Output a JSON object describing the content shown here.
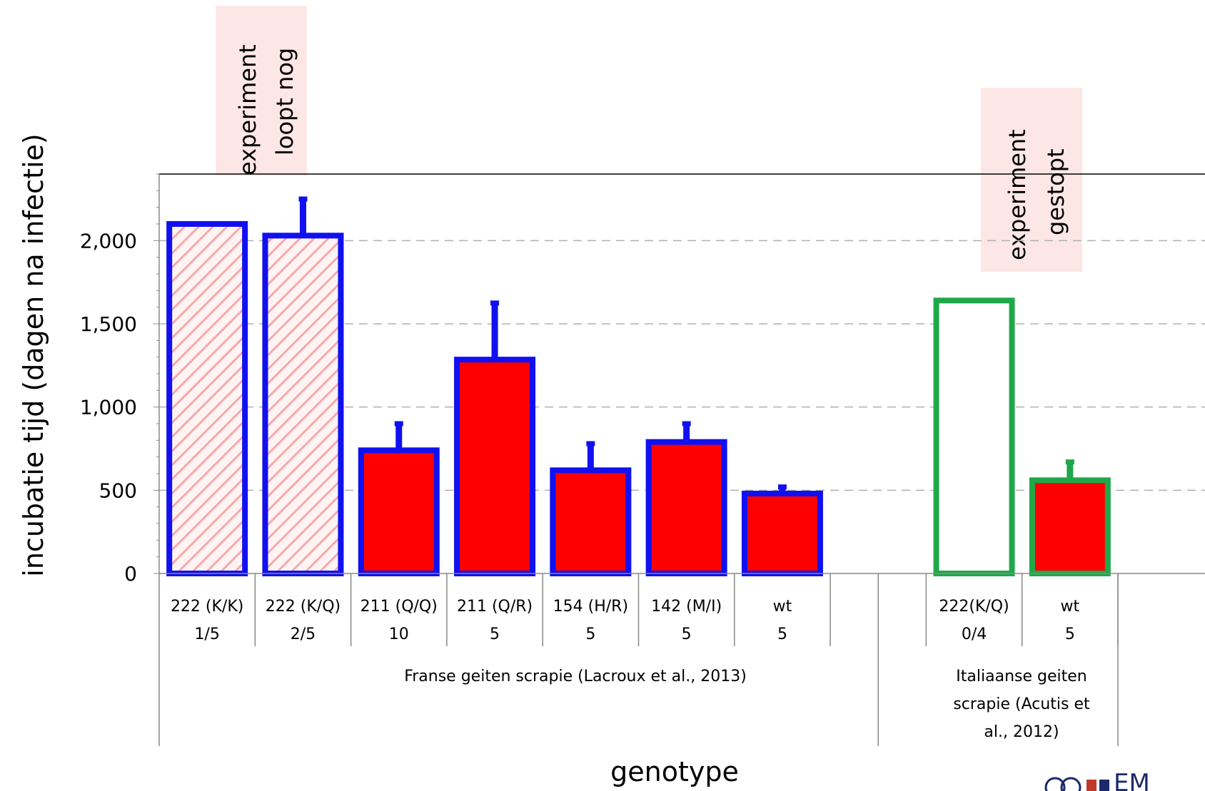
{
  "chart_data": {
    "type": "bar",
    "ylabel": "incubatie tijd (dagen na infectie)",
    "xlabel": "genotype",
    "ylim": [
      0,
      2400
    ],
    "yticks": [
      0,
      500,
      1000,
      1500,
      2000
    ],
    "ytick_labels": [
      "0",
      "500",
      "1,000",
      "1,500",
      "2,000"
    ],
    "grid": "horizontal dashed",
    "categories": [
      {
        "label": "222 (K/K)",
        "sub": "1/5",
        "value": 2100,
        "error": 0,
        "style": "hatched",
        "outline": "#1010f0"
      },
      {
        "label": "222 (K/Q)",
        "sub": "2/5",
        "value": 2030,
        "error": 220,
        "style": "hatched",
        "outline": "#1010f0"
      },
      {
        "label": "211 (Q/Q)",
        "sub": "10",
        "value": 740,
        "error": 160,
        "style": "solid",
        "outline": "#1010f0"
      },
      {
        "label": "211 (Q/R)",
        "sub": "5",
        "value": 1285,
        "error": 340,
        "style": "solid",
        "outline": "#1010f0"
      },
      {
        "label": "154 (H/R)",
        "sub": "5",
        "value": 620,
        "error": 160,
        "style": "solid",
        "outline": "#1010f0"
      },
      {
        "label": "142 (M/I)",
        "sub": "5",
        "value": 790,
        "error": 110,
        "style": "solid",
        "outline": "#1010f0"
      },
      {
        "label": "wt",
        "sub": "5",
        "value": 480,
        "error": 40,
        "style": "solid",
        "outline": "#1010f0"
      },
      {
        "label": "",
        "sub": "",
        "value": null,
        "error": 0,
        "style": "none",
        "outline": ""
      },
      {
        "label": "222(K/Q)",
        "sub": "0/4",
        "value": 1640,
        "error": 0,
        "style": "open",
        "outline": "#1fa84a"
      },
      {
        "label": "wt",
        "sub": "5",
        "value": 560,
        "error": 110,
        "style": "solid",
        "outline": "#1fa84a"
      }
    ],
    "groups": [
      {
        "label": "Franse geiten scrapie (Lacroux et al., 2013)"
      },
      {
        "label_lines": [
          "Italiaanse geiten",
          "scrapie (Acutis et",
          "al., 2012)"
        ]
      }
    ],
    "annotations": [
      {
        "lines": [
          "experiment",
          "loopt nog"
        ]
      },
      {
        "lines": [
          "experiment",
          "gestopt"
        ]
      }
    ],
    "colors": {
      "fill": "#ff0000",
      "hatch": "#f4aaaa",
      "hatch_bg": "#fff3f3",
      "french_outline": "#1010f0",
      "italian_outline": "#1fa84a",
      "note_bg": "#fde6e6",
      "grid": "#b0b0b0"
    }
  },
  "logo": {
    "text": "EM"
  }
}
